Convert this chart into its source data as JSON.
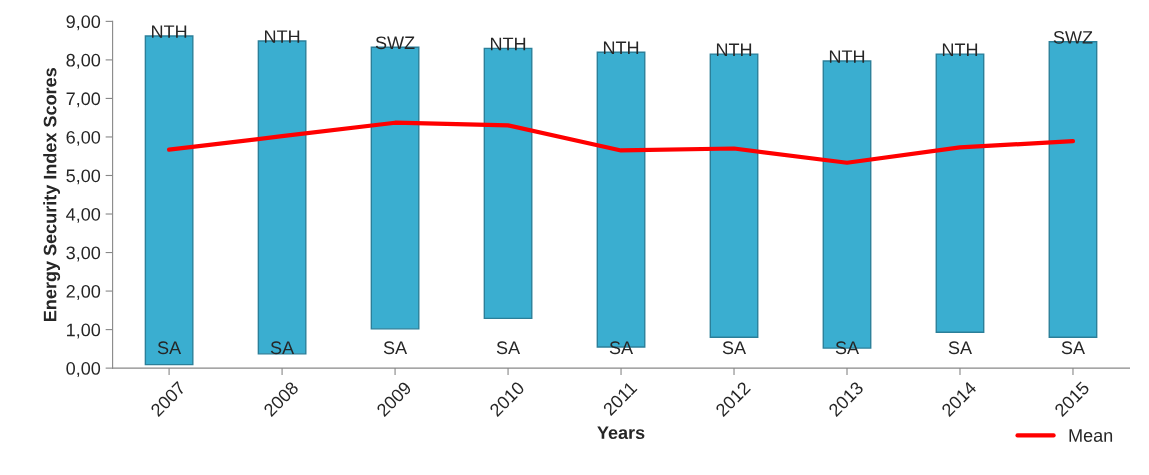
{
  "chart_data": {
    "type": "bar",
    "xlabel": "Years",
    "ylabel": "Energy Security Index Scores",
    "categories": [
      "2007",
      "2008",
      "2009",
      "2010",
      "2011",
      "2012",
      "2013",
      "2014",
      "2015"
    ],
    "series": [
      {
        "color": "#3aaed0",
        "base": [
          0.09,
          0.37,
          1.02,
          1.29,
          0.55,
          0.8,
          0.52,
          0.93,
          0.8
        ],
        "values": [
          8.53,
          8.12,
          7.31,
          7.01,
          7.65,
          7.35,
          7.45,
          7.22,
          7.67
        ]
      },
      {
        "type": "line",
        "name": "Mean",
        "color": "#ff0000",
        "values": [
          5.67,
          6.02,
          6.37,
          6.3,
          5.65,
          5.7,
          5.33,
          5.73,
          5.89
        ]
      }
    ],
    "ylim": [
      0,
      9
    ],
    "yticks": [
      {
        "value": 0,
        "label": "0,00"
      },
      {
        "value": 1,
        "label": "1,00"
      },
      {
        "value": 2,
        "label": "2,00"
      },
      {
        "value": 3,
        "label": "3,00"
      },
      {
        "value": 4,
        "label": "4,00"
      },
      {
        "value": 5,
        "label": "5,00"
      },
      {
        "value": 6,
        "label": "6,00"
      },
      {
        "value": 7,
        "label": "7,00"
      },
      {
        "value": 8,
        "label": "8,00"
      },
      {
        "value": 9,
        "label": "9,00"
      }
    ],
    "annotations": [
      {
        "text": "NTH",
        "x": "2007",
        "y": 8.62
      },
      {
        "text": "NTH",
        "x": "2008",
        "y": 8.49
      },
      {
        "text": "SWZ",
        "x": "2009",
        "y": 8.33
      },
      {
        "text": "NTH",
        "x": "2010",
        "y": 8.3
      },
      {
        "text": "NTH",
        "x": "2011",
        "y": 8.2
      },
      {
        "text": "NTH",
        "x": "2012",
        "y": 8.15
      },
      {
        "text": "NTH",
        "x": "2013",
        "y": 7.97
      },
      {
        "text": "NTH",
        "x": "2014",
        "y": 8.15
      },
      {
        "text": "SWZ",
        "x": "2015",
        "y": 8.47
      },
      {
        "text": "SA",
        "x": "2007",
        "y": 0.09
      },
      {
        "text": "SA",
        "x": "2008",
        "y": 0.37
      },
      {
        "text": "SA",
        "x": "2009",
        "y": 1.02
      },
      {
        "text": "SA",
        "x": "2010",
        "y": 1.29
      },
      {
        "text": "SA",
        "x": "2011",
        "y": 0.55
      },
      {
        "text": "SA",
        "x": "2012",
        "y": 0.8
      },
      {
        "text": "SA",
        "x": "2013",
        "y": 0.52
      },
      {
        "text": "SA",
        "x": "2014",
        "y": 0.93
      },
      {
        "text": "SA",
        "x": "2015",
        "y": 0.8
      }
    ],
    "grid": false,
    "legend": "bottom right"
  }
}
